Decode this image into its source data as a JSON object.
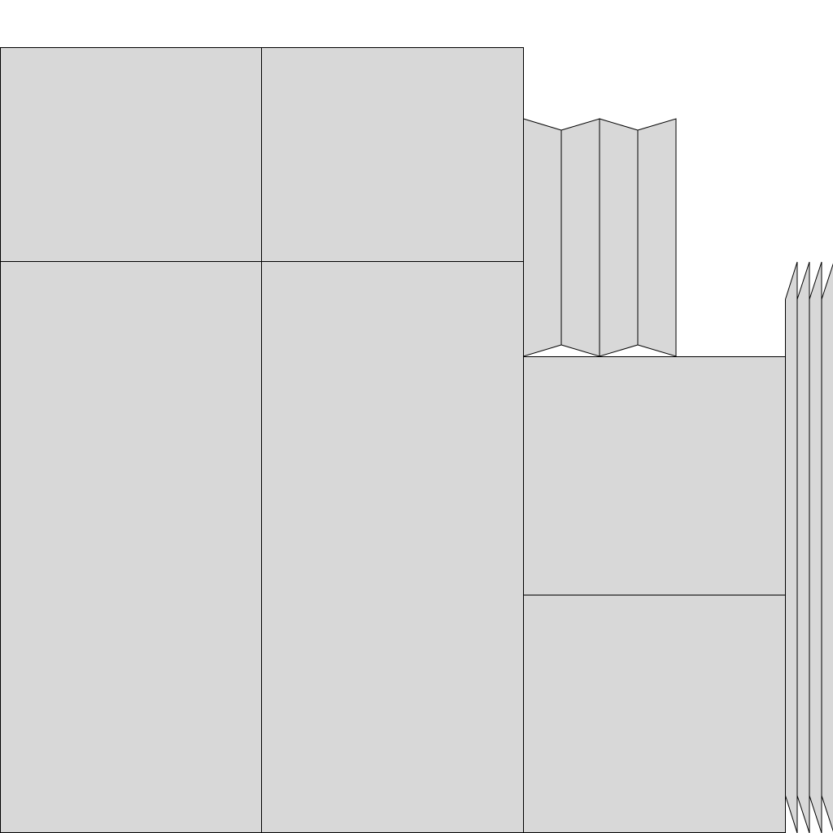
{
  "diagram": {
    "fill_color": "#d8d8d8",
    "stroke_color": "#000000",
    "background": "#ffffff"
  }
}
